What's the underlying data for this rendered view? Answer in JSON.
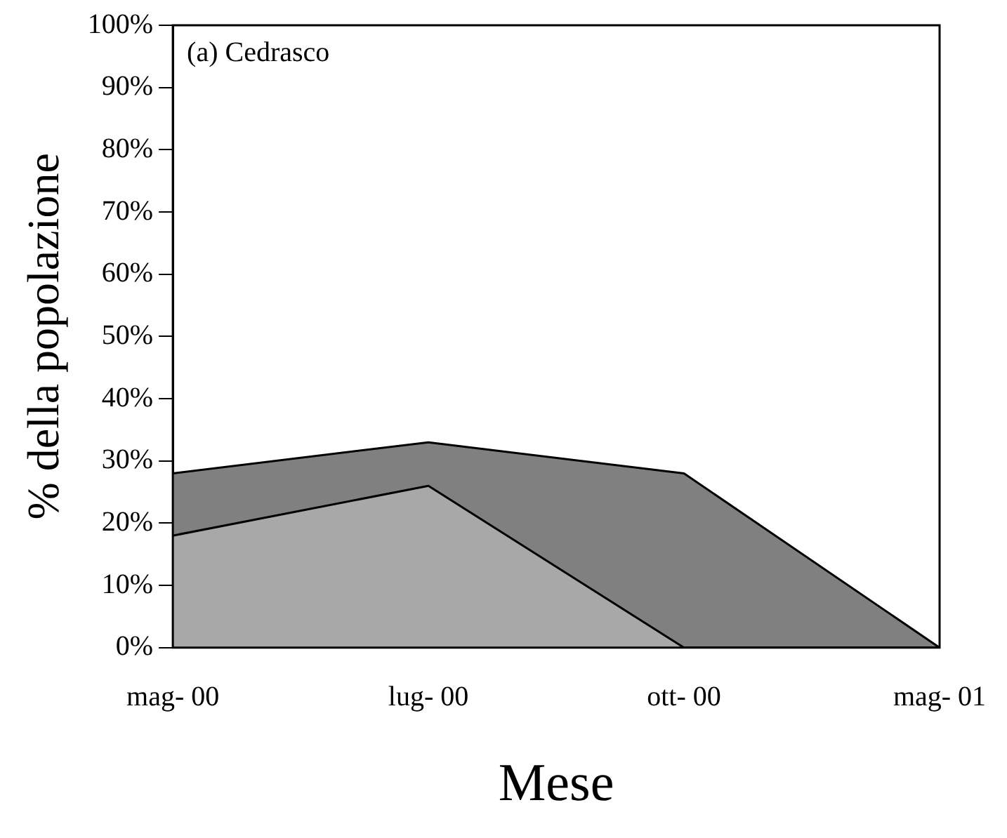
{
  "chart_data": {
    "type": "area",
    "xlabel": "Mese",
    "ylabel": "% della popolazione",
    "annotations": [
      "(a) Cedrasco"
    ],
    "categories": [
      "mag- 00",
      "lug- 00",
      "ott- 00",
      "mag- 01"
    ],
    "series": [
      {
        "color": "#808080",
        "values": [
          28,
          33,
          28,
          0
        ]
      },
      {
        "color": "#a8a8a8",
        "values": [
          18,
          26,
          0,
          0
        ]
      }
    ],
    "ylim": [
      0,
      100
    ],
    "yticks": [
      {
        "value": 0,
        "label": "0%"
      },
      {
        "value": 10,
        "label": "10%"
      },
      {
        "value": 20,
        "label": "20%"
      },
      {
        "value": 30,
        "label": "30%"
      },
      {
        "value": 40,
        "label": "40%"
      },
      {
        "value": 50,
        "label": "50%"
      },
      {
        "value": 60,
        "label": "60%"
      },
      {
        "value": 70,
        "label": "70%"
      },
      {
        "value": 80,
        "label": "80%"
      },
      {
        "value": 90,
        "label": "90%"
      },
      {
        "value": 100,
        "label": "100%"
      }
    ],
    "grid": false,
    "legend": false
  }
}
